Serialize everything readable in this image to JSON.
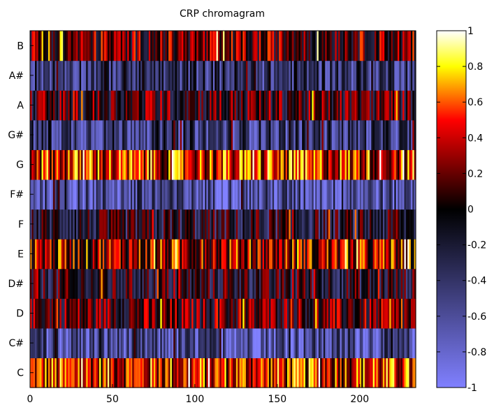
{
  "chart_data": {
    "type": "heatmap",
    "title": "CRP chromagram",
    "xlabel": "",
    "ylabel": "",
    "rows": [
      "C",
      "C#",
      "D",
      "D#",
      "E",
      "F",
      "F#",
      "G",
      "G#",
      "A",
      "A#",
      "B"
    ],
    "xlim": [
      0,
      234
    ],
    "x_ticks": [
      0,
      50,
      100,
      150,
      200
    ],
    "clim": [
      -1,
      1
    ],
    "colorbar_ticks": [
      1,
      0.8,
      0.6,
      0.4,
      0.2,
      0,
      -0.2,
      -0.4,
      -0.6,
      -0.8,
      -1
    ],
    "colormap": "hot-cold (blue-black-red-yellow-white)",
    "grid": false,
    "row_levels": {
      "C": 0.45,
      "C#": -0.6,
      "D": 0.1,
      "D#": -0.1,
      "E": 0.3,
      "F": -0.15,
      "F#": -0.6,
      "G": 0.45,
      "G#": -0.45,
      "A": 0.05,
      "A#": -0.4,
      "B": 0.15
    }
  },
  "colors": {
    "cmap_stops": [
      "#8080ff",
      "#000000",
      "#ff0000",
      "#ffff00",
      "#ffffff"
    ]
  }
}
